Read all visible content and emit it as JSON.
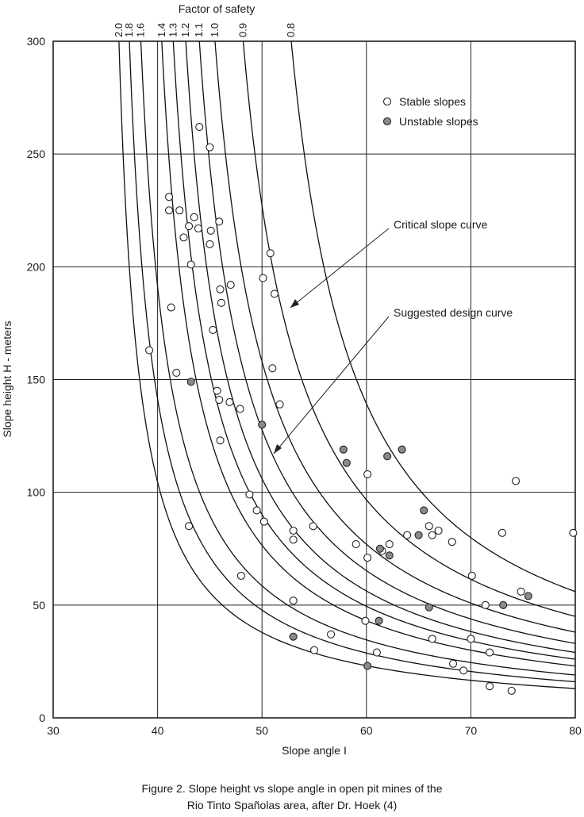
{
  "chart_data": {
    "type": "scatter",
    "title": "Factor of safety",
    "xlabel": "Slope angle I",
    "ylabel": "Slope height H - meters",
    "xlim": [
      30,
      80
    ],
    "ylim": [
      0,
      300
    ],
    "x_ticks": [
      "30",
      "40",
      "50",
      "60",
      "70",
      "80"
    ],
    "y_ticks": [
      "0",
      "50",
      "100",
      "150",
      "200",
      "250",
      "300"
    ],
    "grid": true,
    "legend_position": "top-right",
    "factor_of_safety_curves": [
      {
        "label": "2.0",
        "asymptote_angle": 36.3
      },
      {
        "label": "1.8",
        "asymptote_angle": 37.3
      },
      {
        "label": "1.6",
        "asymptote_angle": 38.4
      },
      {
        "label": "1.4",
        "asymptote_angle": 40.4
      },
      {
        "label": "1.3",
        "asymptote_angle": 41.5
      },
      {
        "label": "1.2",
        "asymptote_angle": 42.7
      },
      {
        "label": "1.1",
        "asymptote_angle": 44.0
      },
      {
        "label": "1.0",
        "asymptote_angle": 45.5
      },
      {
        "label": "0.9",
        "asymptote_angle": 48.2
      },
      {
        "label": "0.8",
        "asymptote_angle": 52.8
      }
    ],
    "series": [
      {
        "name": "Stable slopes",
        "points": [
          [
            39.2,
            163
          ],
          [
            41.1,
            231
          ],
          [
            41.1,
            225
          ],
          [
            41.3,
            182
          ],
          [
            41.8,
            153
          ],
          [
            42.1,
            225
          ],
          [
            42.5,
            213
          ],
          [
            43.0,
            218
          ],
          [
            43.2,
            201
          ],
          [
            43.0,
            85
          ],
          [
            43.5,
            222
          ],
          [
            43.9,
            217
          ],
          [
            44.0,
            262
          ],
          [
            45.0,
            253
          ],
          [
            45.0,
            210
          ],
          [
            45.1,
            216
          ],
          [
            45.3,
            172
          ],
          [
            45.7,
            145
          ],
          [
            45.9,
            220
          ],
          [
            45.9,
            141
          ],
          [
            46.0,
            123
          ],
          [
            46.0,
            190
          ],
          [
            46.1,
            184
          ],
          [
            47.0,
            192
          ],
          [
            46.9,
            140
          ],
          [
            47.9,
            137
          ],
          [
            48.0,
            63
          ],
          [
            48.8,
            99
          ],
          [
            49.5,
            92
          ],
          [
            50.1,
            195
          ],
          [
            50.2,
            87
          ],
          [
            50.8,
            206
          ],
          [
            51.0,
            155
          ],
          [
            51.2,
            188
          ],
          [
            51.7,
            139
          ],
          [
            53.0,
            52
          ],
          [
            53.0,
            83
          ],
          [
            53.0,
            79
          ],
          [
            54.9,
            85
          ],
          [
            55.0,
            30
          ],
          [
            56.6,
            37
          ],
          [
            59.0,
            77
          ],
          [
            59.9,
            43
          ],
          [
            60.1,
            108
          ],
          [
            60.1,
            71
          ],
          [
            61.0,
            29
          ],
          [
            61.5,
            74
          ],
          [
            62.2,
            77
          ],
          [
            63.9,
            81
          ],
          [
            66.0,
            85
          ],
          [
            66.3,
            81
          ],
          [
            66.3,
            35
          ],
          [
            66.9,
            83
          ],
          [
            68.2,
            78
          ],
          [
            68.3,
            24
          ],
          [
            69.3,
            21
          ],
          [
            70.0,
            35
          ],
          [
            70.1,
            63
          ],
          [
            71.4,
            50
          ],
          [
            71.8,
            29
          ],
          [
            71.8,
            14
          ],
          [
            73.0,
            82
          ],
          [
            73.9,
            12
          ],
          [
            74.3,
            105
          ],
          [
            74.8,
            56
          ],
          [
            79.8,
            82
          ]
        ]
      },
      {
        "name": "Unstable slopes",
        "points": [
          [
            43.2,
            149
          ],
          [
            50.0,
            130
          ],
          [
            53.0,
            36
          ],
          [
            57.8,
            119
          ],
          [
            58.1,
            113
          ],
          [
            60.1,
            23
          ],
          [
            61.2,
            43
          ],
          [
            61.3,
            75
          ],
          [
            62.0,
            116
          ],
          [
            62.2,
            72
          ],
          [
            63.4,
            119
          ],
          [
            65.0,
            81
          ],
          [
            65.5,
            92
          ],
          [
            66.0,
            49
          ],
          [
            73.1,
            50
          ],
          [
            75.5,
            54
          ]
        ]
      }
    ],
    "annotations": [
      "Critical slope curve",
      "Suggested design curve"
    ]
  },
  "legend": {
    "stable": "Stable slopes",
    "unstable": "Unstable slopes"
  },
  "caption": {
    "line1": "Figure 2.  Slope height vs slope angle in open pit mines of the",
    "line2": "Rio Tinto Spañolas area, after Dr. Hoek (4)"
  }
}
